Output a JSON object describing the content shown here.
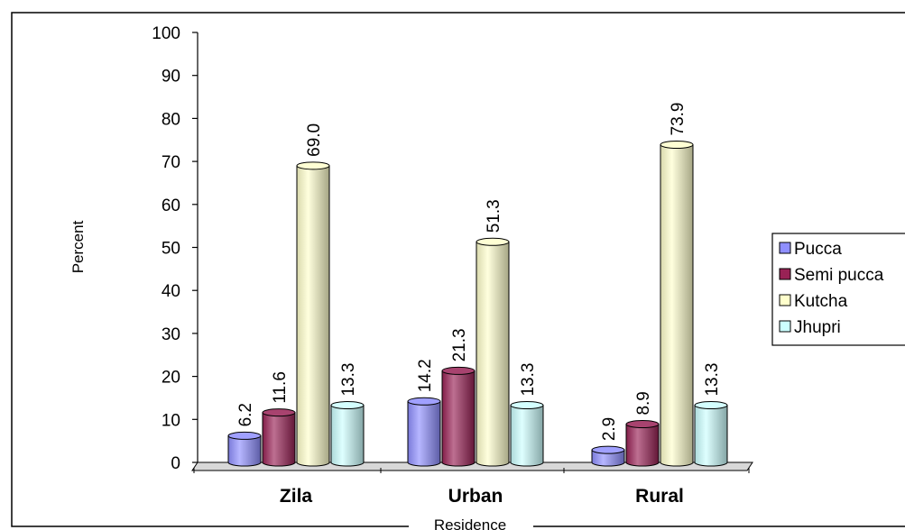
{
  "chart_data": {
    "type": "bar",
    "style": "3d-cylinder",
    "categories": [
      "Zila",
      "Urban",
      "Rural"
    ],
    "series": [
      {
        "name": "Pucca",
        "values": [
          6.2,
          14.2,
          2.9
        ],
        "color": "#8f8fff"
      },
      {
        "name": "Semi pucca",
        "values": [
          11.6,
          21.3,
          8.9
        ],
        "color": "#992255"
      },
      {
        "name": "Kutcha",
        "values": [
          69.0,
          51.3,
          73.9
        ],
        "color": "#ffffcc"
      },
      {
        "name": "Jhupri",
        "values": [
          13.3,
          13.3,
          13.3
        ],
        "color": "#ccffff"
      }
    ],
    "data_labels": [
      [
        "6.2",
        "14.2",
        "2.9"
      ],
      [
        "11.6",
        "21.3",
        "8.9"
      ],
      [
        "69.0",
        "51.3",
        "73.9"
      ],
      [
        "13.3",
        "13.3",
        "13.3"
      ]
    ],
    "xlabel": "Residence",
    "ylabel": "Percent",
    "ylim": [
      0,
      100
    ],
    "yticks": [
      "0",
      "10",
      "20",
      "30",
      "40",
      "50",
      "60",
      "70",
      "80",
      "90",
      "100"
    ],
    "grid": false,
    "legend": "right"
  }
}
